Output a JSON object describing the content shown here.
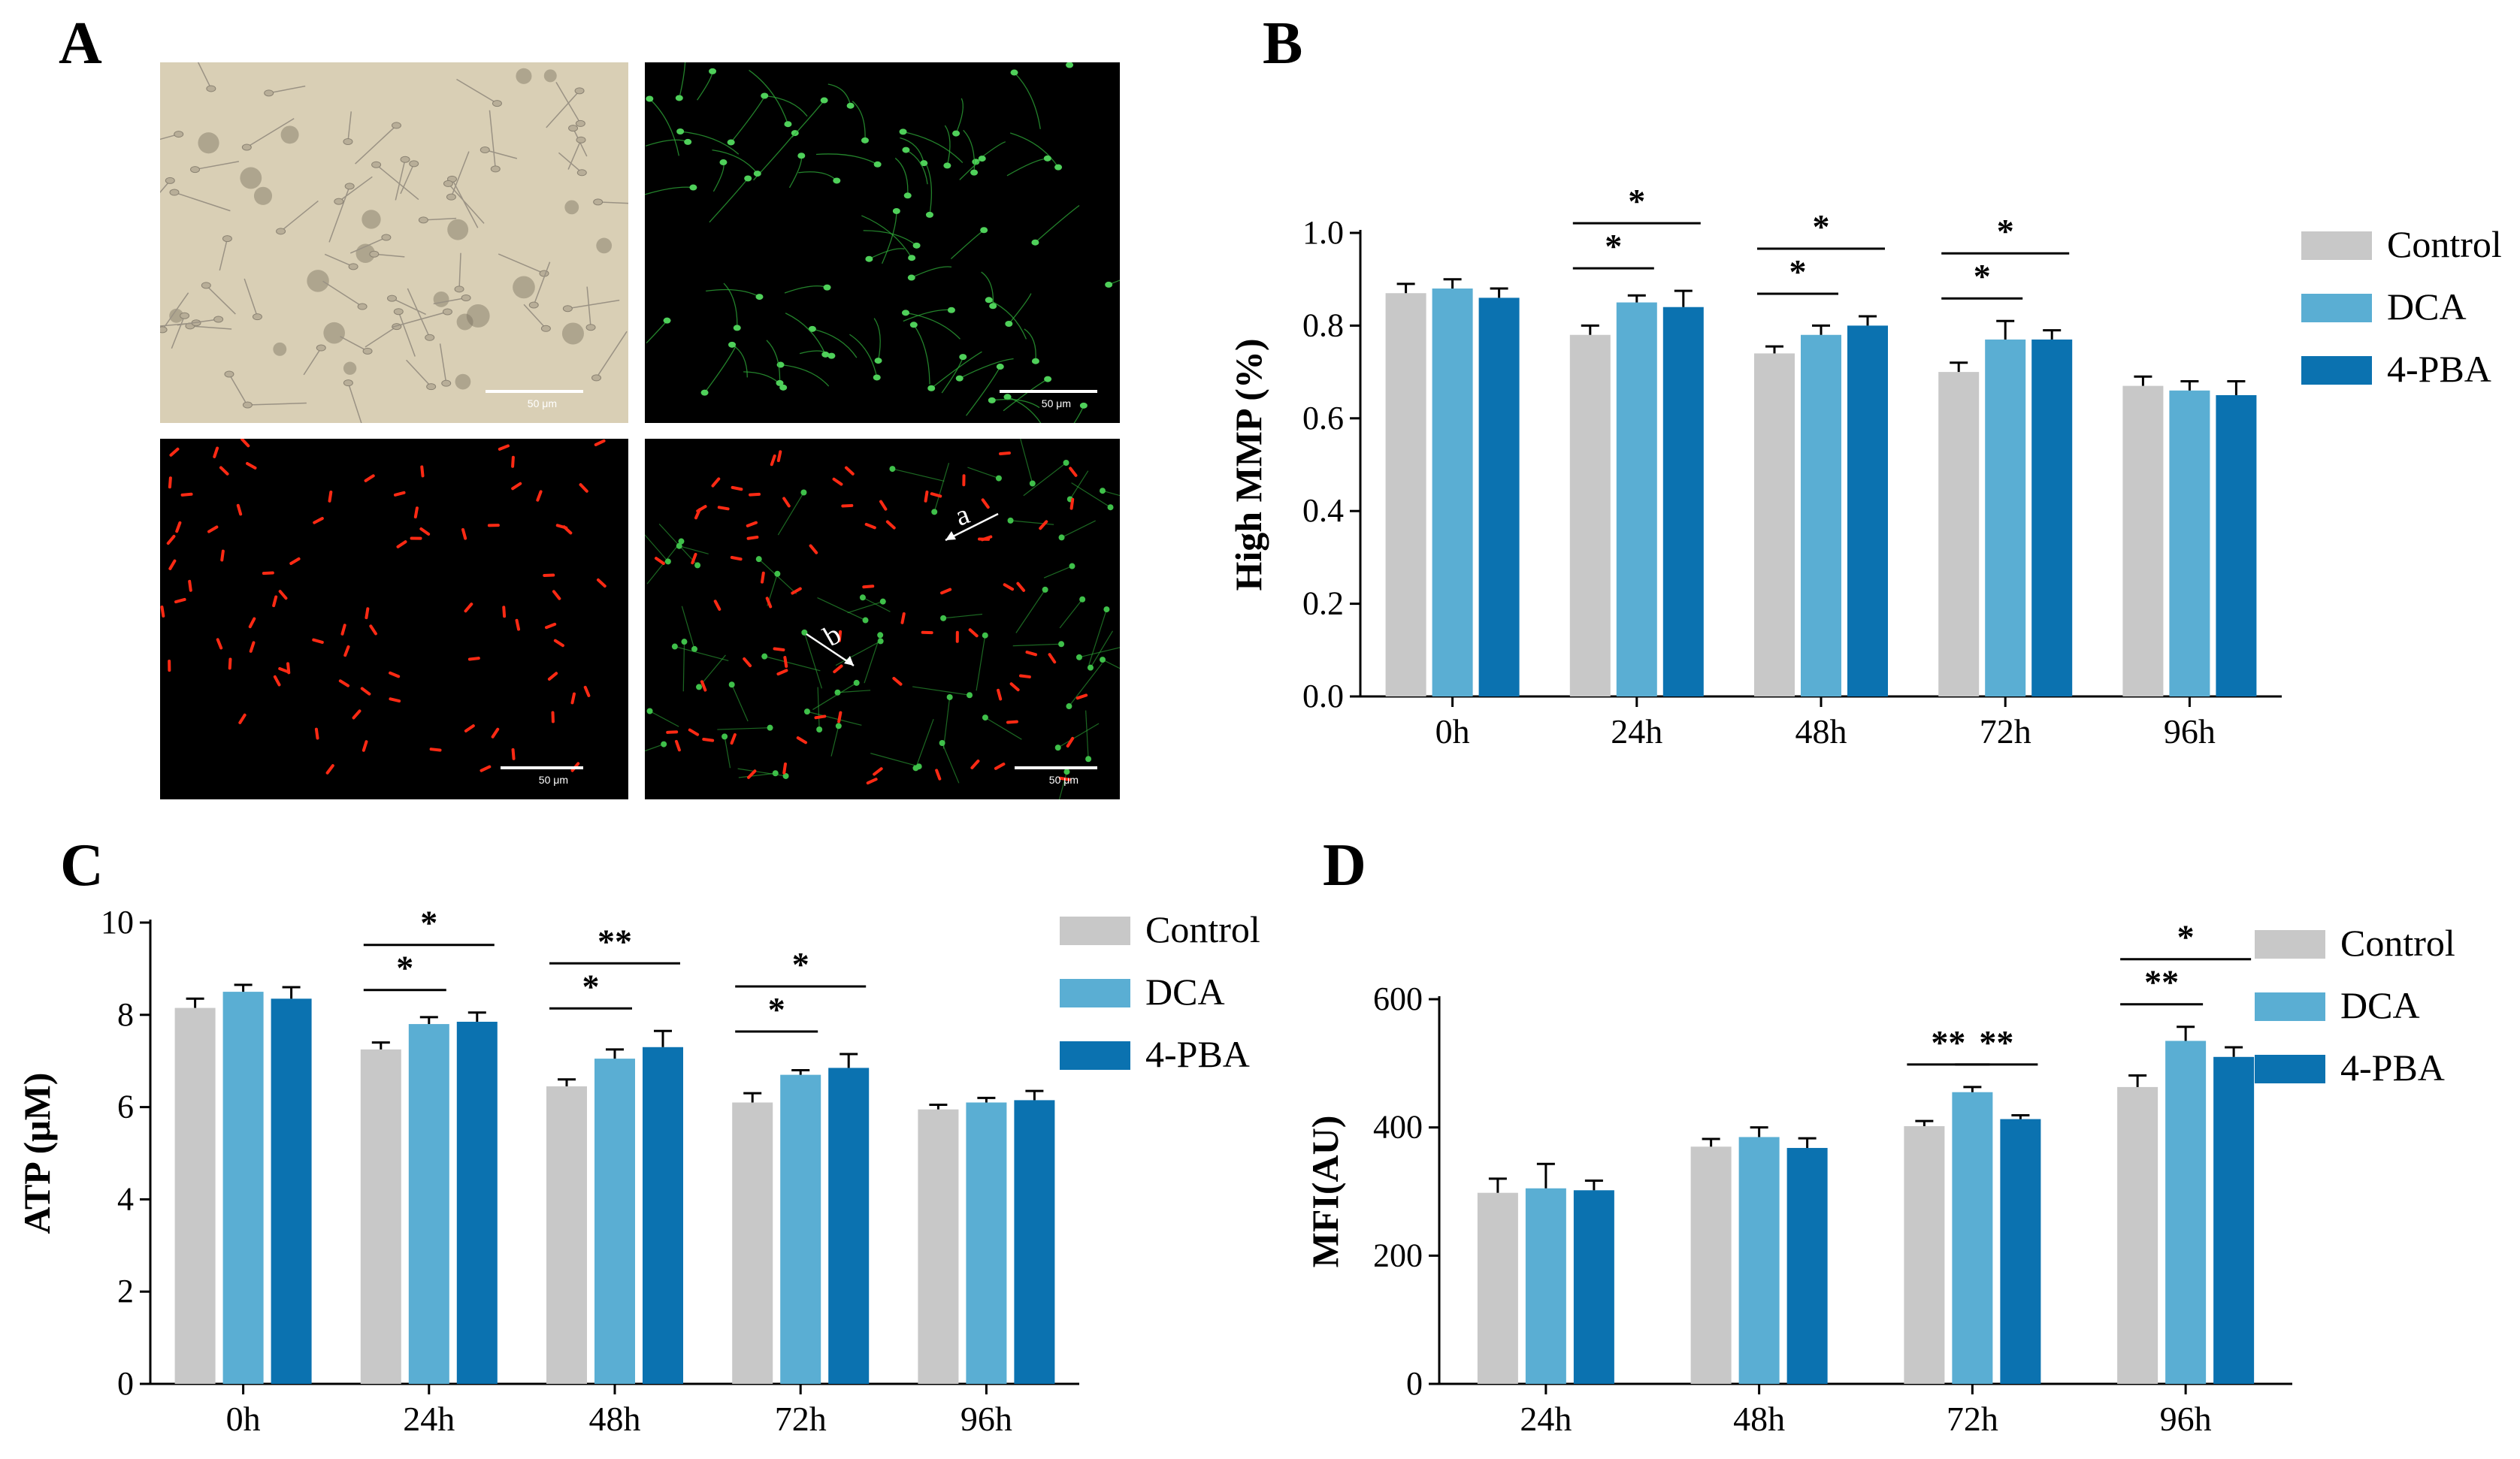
{
  "panels": {
    "a": "A",
    "b": "B",
    "c": "C",
    "d": "D"
  },
  "micrographs": {
    "scale_bar_label": "50 μm",
    "arrow_labels": [
      "a",
      "b"
    ]
  },
  "colors": {
    "control": "#c8c8c8",
    "dca": "#5aaed3",
    "pba": "#0b72b0",
    "brightfield_bg": "#d9cfb5",
    "fluor_bg": "#000000",
    "green_stain": "#2fae3a",
    "red_stain": "#ff2a14"
  },
  "chart_data": [
    {
      "panel": "B",
      "type": "bar",
      "ylabel": "High MMP (%)",
      "categories": [
        "0h",
        "24h",
        "48h",
        "72h",
        "96h"
      ],
      "ylim": [
        0,
        1.0
      ],
      "yticks": [
        "0.0",
        "0.2",
        "0.4",
        "0.6",
        "0.8",
        "1.0"
      ],
      "ytick_values": [
        0,
        0.2,
        0.4,
        0.6,
        0.8,
        1.0
      ],
      "series": [
        {
          "name": "Control",
          "values": [
            0.87,
            0.78,
            0.74,
            0.7,
            0.67
          ],
          "errors": [
            0.02,
            0.02,
            0.015,
            0.02,
            0.02
          ]
        },
        {
          "name": "DCA",
          "values": [
            0.88,
            0.85,
            0.78,
            0.77,
            0.66
          ],
          "errors": [
            0.02,
            0.015,
            0.02,
            0.04,
            0.02
          ]
        },
        {
          "name": "4-PBA",
          "values": [
            0.86,
            0.84,
            0.8,
            0.77,
            0.65
          ],
          "errors": [
            0.02,
            0.035,
            0.02,
            0.02,
            0.03
          ]
        }
      ],
      "significance": [
        {
          "category": 1,
          "from": 0,
          "to": 1,
          "label": "*",
          "level": 1
        },
        {
          "category": 1,
          "from": 0,
          "to": 2,
          "label": "*",
          "level": 2
        },
        {
          "category": 2,
          "from": 0,
          "to": 1,
          "label": "*",
          "level": 1
        },
        {
          "category": 2,
          "from": 0,
          "to": 2,
          "label": "*",
          "level": 2
        },
        {
          "category": 3,
          "from": 0,
          "to": 1,
          "label": "*",
          "level": 1
        },
        {
          "category": 3,
          "from": 0,
          "to": 2,
          "label": "*",
          "level": 2
        }
      ],
      "legend_placement": "right"
    },
    {
      "panel": "C",
      "type": "bar",
      "ylabel": "ATP (μM)",
      "categories": [
        "0h",
        "24h",
        "48h",
        "72h",
        "96h"
      ],
      "ylim": [
        0,
        10
      ],
      "yticks": [
        "0",
        "2",
        "4",
        "6",
        "8",
        "10"
      ],
      "ytick_values": [
        0,
        2,
        4,
        6,
        8,
        10
      ],
      "series": [
        {
          "name": "Control",
          "values": [
            8.15,
            7.25,
            6.45,
            6.1,
            5.95
          ],
          "errors": [
            0.2,
            0.15,
            0.15,
            0.2,
            0.1
          ]
        },
        {
          "name": "DCA",
          "values": [
            8.5,
            7.8,
            7.05,
            6.7,
            6.1
          ],
          "errors": [
            0.15,
            0.15,
            0.2,
            0.1,
            0.1
          ]
        },
        {
          "name": "4-PBA",
          "values": [
            8.35,
            7.85,
            7.3,
            6.85,
            6.15
          ],
          "errors": [
            0.25,
            0.2,
            0.35,
            0.3,
            0.2
          ]
        }
      ],
      "significance": [
        {
          "category": 1,
          "from": 0,
          "to": 1,
          "label": "*",
          "level": 1
        },
        {
          "category": 1,
          "from": 0,
          "to": 2,
          "label": "*",
          "level": 2
        },
        {
          "category": 2,
          "from": 0,
          "to": 1,
          "label": "*",
          "level": 1
        },
        {
          "category": 2,
          "from": 0,
          "to": 2,
          "label": "**",
          "level": 2
        },
        {
          "category": 3,
          "from": 0,
          "to": 1,
          "label": "*",
          "level": 1
        },
        {
          "category": 3,
          "from": 0,
          "to": 2,
          "label": "*",
          "level": 2
        }
      ],
      "legend_placement": "right"
    },
    {
      "panel": "D",
      "type": "bar",
      "ylabel": "MFI(AU)",
      "categories": [
        "24h",
        "48h",
        "72h",
        "96h"
      ],
      "ylim": [
        0,
        600
      ],
      "yticks": [
        "0",
        "200",
        "400",
        "600"
      ],
      "ytick_values": [
        0,
        200,
        400,
        600
      ],
      "series": [
        {
          "name": "Control",
          "values": [
            298,
            370,
            402,
            463
          ],
          "errors": [
            22,
            12,
            8,
            18
          ]
        },
        {
          "name": "DCA",
          "values": [
            305,
            385,
            455,
            535
          ],
          "errors": [
            38,
            15,
            8,
            22
          ]
        },
        {
          "name": "4-PBA",
          "values": [
            302,
            368,
            413,
            510
          ],
          "errors": [
            15,
            15,
            6,
            15
          ]
        }
      ],
      "significance": [
        {
          "category": 2,
          "from": 0,
          "to": 1,
          "label": "**",
          "level": 1
        },
        {
          "category": 2,
          "from": 1,
          "to": 2,
          "label": "**",
          "level": 1
        },
        {
          "category": 3,
          "from": 0,
          "to": 1,
          "label": "**",
          "level": 1
        },
        {
          "category": 3,
          "from": 0,
          "to": 2,
          "label": "*",
          "level": 2
        }
      ],
      "legend_placement": "right"
    }
  ]
}
